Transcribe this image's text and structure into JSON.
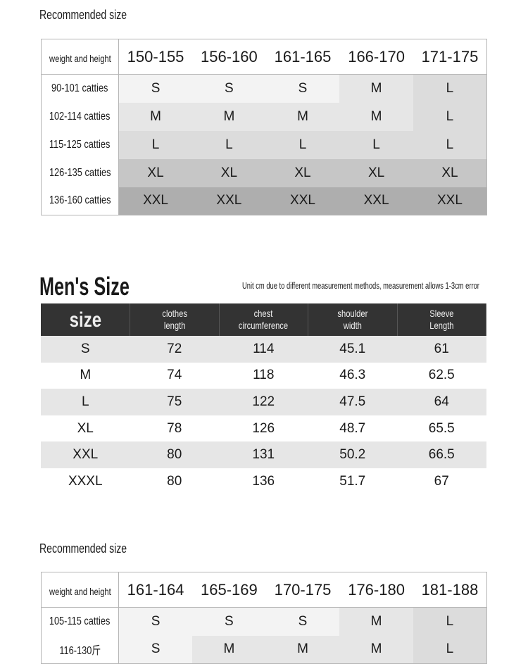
{
  "size_colors": {
    "S": "#f3f3f3",
    "M": "#e6e6e6",
    "L": "#dcdcdc",
    "XL": "#c6c6c6",
    "XXL": "#aeaeae"
  },
  "rec1": {
    "title": "Recommended size",
    "corner": "weight and height",
    "heights": [
      "150-155",
      "156-160",
      "161-165",
      "166-170",
      "171-175"
    ],
    "rows": [
      {
        "label": "90-101 catties",
        "sizes": [
          "S",
          "S",
          "S",
          "M",
          "L"
        ]
      },
      {
        "label": "102-114 catties",
        "sizes": [
          "M",
          "M",
          "M",
          "M",
          "L"
        ]
      },
      {
        "label": "115-125 catties",
        "sizes": [
          "L",
          "L",
          "L",
          "L",
          "L"
        ]
      },
      {
        "label": "126-135 catties",
        "sizes": [
          "XL",
          "XL",
          "XL",
          "XL",
          "XL"
        ]
      },
      {
        "label": "136-160 catties",
        "sizes": [
          "XXL",
          "XXL",
          "XXL",
          "XXL",
          "XXL"
        ]
      }
    ]
  },
  "mens": {
    "title": "Men's Size",
    "note": "Unit cm due to different measurement methods, measurement allows 1-3cm error",
    "headers": [
      [
        "size",
        ""
      ],
      [
        "clothes",
        "length"
      ],
      [
        "chest",
        "circumference"
      ],
      [
        "shoulder",
        "width"
      ],
      [
        "Sleeve",
        "Length"
      ]
    ],
    "rows": [
      [
        "S",
        "72",
        "114",
        "45.1",
        "61"
      ],
      [
        "M",
        "74",
        "118",
        "46.3",
        "62.5"
      ],
      [
        "L",
        "75",
        "122",
        "47.5",
        "64"
      ],
      [
        "XL",
        "78",
        "126",
        "48.7",
        "65.5"
      ],
      [
        "XXL",
        "80",
        "131",
        "50.2",
        "66.5"
      ],
      [
        "XXXL",
        "80",
        "136",
        "51.7",
        "67"
      ]
    ]
  },
  "rec2": {
    "title": "Recommended size",
    "corner": "weight and height",
    "heights": [
      "161-164",
      "165-169",
      "170-175",
      "176-180",
      "181-188"
    ],
    "rows": [
      {
        "label": "105-115 catties",
        "sizes": [
          "S",
          "S",
          "S",
          "M",
          "L"
        ]
      },
      {
        "label": "116-130斤",
        "sizes": [
          "S",
          "M",
          "M",
          "M",
          "L"
        ]
      }
    ]
  }
}
